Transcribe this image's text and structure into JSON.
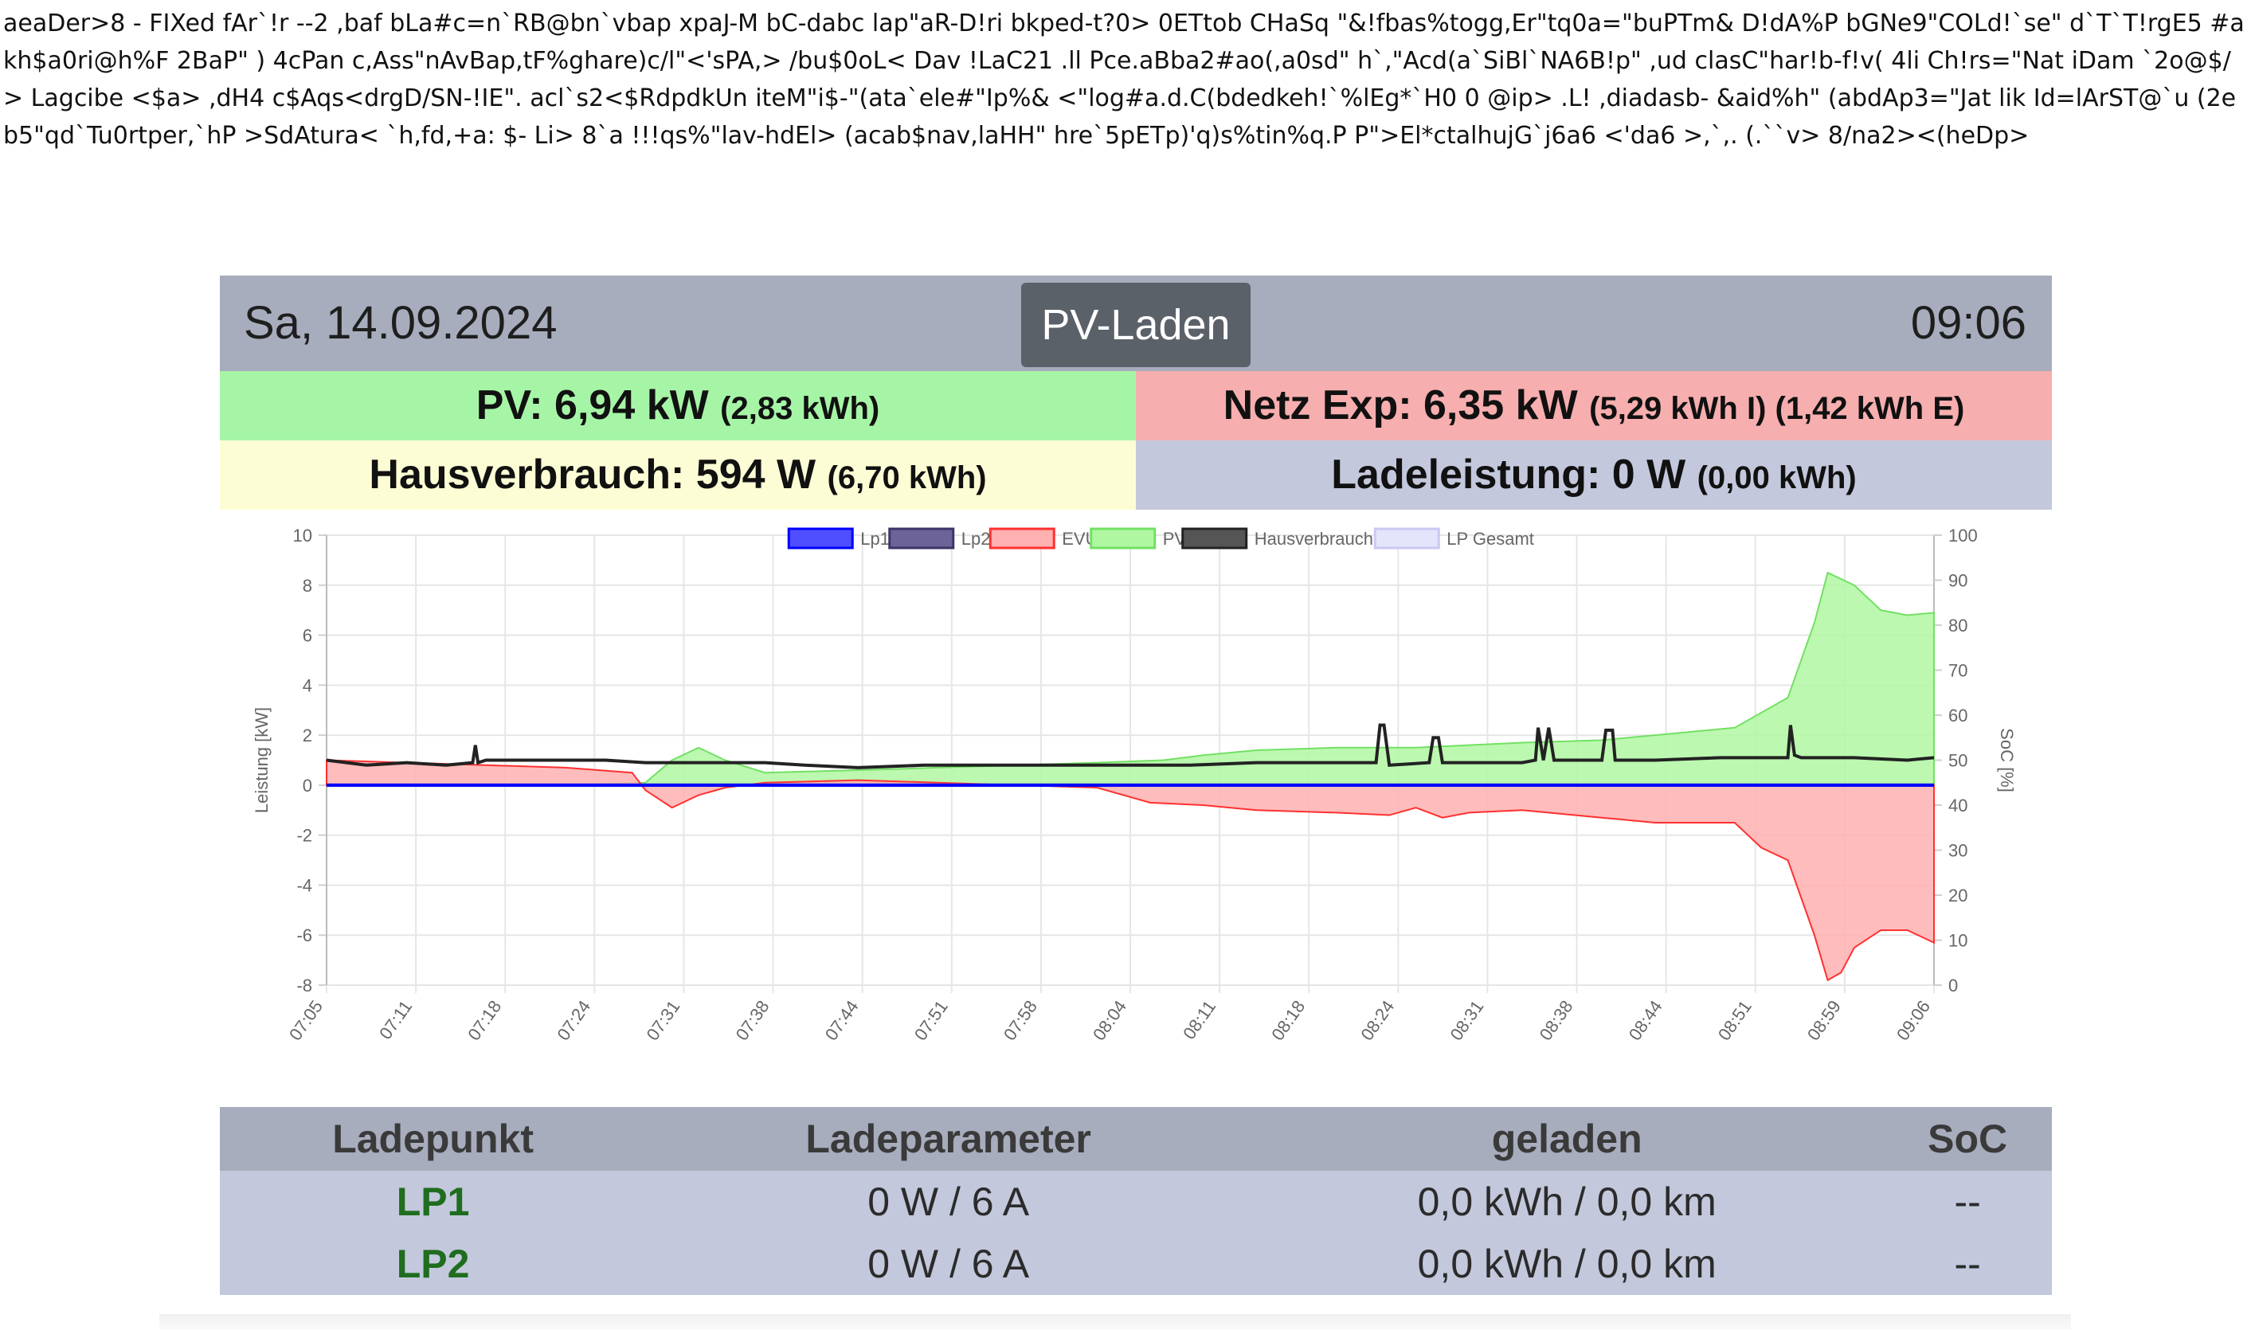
{
  "garbage_text": "aeaDer>8 - FIXed fAr`!r --2 ,baf bLa#c=n`RB@bn`vbap xpaJ-M bC-dabc lap\"aR-D!ri bkped-t?0> 0ETtob CHaSq \"&!fbas%togg,Er\"tq0a=\"buPTm& D!dA%P bGNe9\"COLd!`se\" d`T`T!rgE5 #akh$a0ri@h%F 2BaP\" ) 4cPan c,Ass\"nAvBap,tF%ghare)c/l\"<'sPA,> /bu$0oL< Dav !LaC21 .ll Pce.aBba2#ao(,a0sd\" h`,\"Acd(a`SiBl`NA6B!p\"  ,ud clasC\"har!b-f!v( 4li Ch!rs=\"Nat iDam `2o@$/>    Lagcibe  <$a> ,dH4 c$Aqs<drgD/SN-!IE\". acl`s2<$RdpdkUn iteM\"i$-\"(ata`ele#\"Ip%& <\"log#a.d.C(bdedkeh!`%lEg*`H0    0 @ip> .L! ,diadasb- &aid%h\"  (abdAp3=\"Jat lik Id=lArST@`u (2eb5\"qd`Tu0rtper,`hP >SdAturа< `h,fd,+a:  $- Li> 8`a !!!qs%\"lav-hdEl> (acab$nav,laHH\" hre`5pETp)'q)s%tin%q.P P\">El*ctalhujG`j6a6 <'da6  >,`,. (.``v> 8/na2><(heDp>",
  "header": {
    "date": "Sa, 14.09.2024",
    "title": "PV-Laden",
    "time": "09:06"
  },
  "summary": {
    "pv": {
      "label": "PV: 6,94 kW",
      "sub": "(2,83 kWh)"
    },
    "netz": {
      "label": "Netz Exp: 6,35 kW",
      "sub": "(5,29 kWh I) (1,42 kWh E)"
    },
    "haus": {
      "label": "Hausverbrauch: 594 W",
      "sub": "(6,70 kWh)"
    },
    "lade": {
      "label": "Ladeleistung: 0 W",
      "sub": "(0,00 kWh)"
    }
  },
  "table": {
    "headers": [
      "Ladepunkt",
      "Ladeparameter",
      "geladen",
      "SoC"
    ],
    "rows": [
      {
        "name": "LP1",
        "param": "0 W / 6 A",
        "geladen": "0,0 kWh / 0,0 km",
        "soc": "--"
      },
      {
        "name": "LP2",
        "param": "0 W / 6 A",
        "geladen": "0,0 kWh / 0,0 km",
        "soc": "--"
      }
    ]
  },
  "chart_data": {
    "type": "line",
    "ylabel": "Leistung [kW]",
    "ylabel_right": "SoC [%]",
    "ylim": [
      -8,
      10
    ],
    "y2lim": [
      0,
      100
    ],
    "yticks": [
      "10",
      "8",
      "6",
      "4",
      "2",
      "0",
      "-2",
      "-4",
      "-6",
      "-8"
    ],
    "y2ticks": [
      "100",
      "90",
      "80",
      "70",
      "60",
      "50",
      "40",
      "30",
      "20",
      "10",
      "0"
    ],
    "xticks": [
      "07:05",
      "07:11",
      "07:18",
      "07:24",
      "07:31",
      "07:38",
      "07:44",
      "07:51",
      "07:58",
      "08:04",
      "08:11",
      "08:18",
      "08:24",
      "08:31",
      "08:38",
      "08:44",
      "08:51",
      "08:59",
      "09:06"
    ],
    "xlim": [
      0,
      121
    ],
    "legend_position": "top",
    "legend": [
      {
        "name": "Lp1",
        "fill": "#4f4fff",
        "stroke": "#0000ff"
      },
      {
        "name": "Lp2",
        "fill": "#6c6399",
        "stroke": "#3d3567"
      },
      {
        "name": "EVU",
        "fill": "#ffb0b0",
        "stroke": "#ff3030"
      },
      {
        "name": "PV",
        "fill": "#b0f7a2",
        "stroke": "#73e063"
      },
      {
        "name": "Hausverbrauch",
        "fill": "#555555",
        "stroke": "#222222"
      },
      {
        "name": "LP Gesamt",
        "fill": "#e4e4fb",
        "stroke": "#c9c9f3"
      }
    ],
    "series": [
      {
        "name": "PV",
        "x": [
          0,
          6,
          12,
          18,
          24,
          26,
          28,
          30,
          33,
          40,
          46,
          52,
          58,
          63,
          66,
          70,
          76,
          82,
          86,
          90,
          96,
          100,
          106,
          110,
          111,
          112,
          113,
          115,
          117,
          119,
          121
        ],
        "values": [
          0,
          0,
          0,
          0,
          0.1,
          1.0,
          1.5,
          1.0,
          0.5,
          0.6,
          0.7,
          0.8,
          0.9,
          1.0,
          1.2,
          1.4,
          1.5,
          1.5,
          1.6,
          1.7,
          1.8,
          2.0,
          2.3,
          3.5,
          5.0,
          6.5,
          8.5,
          8.0,
          7.0,
          6.8,
          6.9
        ]
      },
      {
        "name": "EVU",
        "x": [
          0,
          6,
          12,
          18,
          23,
          24,
          26,
          28,
          30,
          33,
          40,
          46,
          52,
          58,
          60,
          62,
          66,
          70,
          76,
          80,
          82,
          84,
          86,
          90,
          96,
          100,
          106,
          107,
          108,
          110,
          111,
          112,
          113,
          114,
          115,
          117,
          119,
          121
        ],
        "values": [
          1.0,
          0.9,
          0.8,
          0.7,
          0.5,
          -0.2,
          -0.9,
          -0.4,
          -0.1,
          0.1,
          0.2,
          0.1,
          0.0,
          -0.1,
          -0.4,
          -0.7,
          -0.8,
          -1.0,
          -1.1,
          -1.2,
          -0.9,
          -1.3,
          -1.1,
          -1.0,
          -1.3,
          -1.5,
          -1.5,
          -2.0,
          -2.5,
          -3.0,
          -4.5,
          -6.0,
          -7.8,
          -7.5,
          -6.5,
          -5.8,
          -5.8,
          -6.3
        ]
      },
      {
        "name": "Hausverbrauch",
        "x": [
          0,
          3,
          6,
          9,
          11,
          11.2,
          11.4,
          12,
          15,
          18,
          21,
          24,
          27,
          30,
          33,
          36,
          40,
          45,
          50,
          55,
          60,
          65,
          70,
          79,
          79.3,
          79.6,
          80,
          83,
          83.3,
          83.7,
          84,
          90,
          91,
          91.2,
          91.6,
          92,
          92.4,
          93,
          96,
          96.3,
          96.8,
          97,
          100,
          105,
          110,
          110.2,
          110.5,
          111,
          115,
          119,
          121
        ],
        "values": [
          1.0,
          0.8,
          0.9,
          0.8,
          0.9,
          1.6,
          0.9,
          1.0,
          1.0,
          1.0,
          1.0,
          0.9,
          0.9,
          0.9,
          0.9,
          0.8,
          0.7,
          0.8,
          0.8,
          0.8,
          0.8,
          0.8,
          0.9,
          0.9,
          2.4,
          2.4,
          0.8,
          0.9,
          1.9,
          1.9,
          0.9,
          0.9,
          1.0,
          2.3,
          1.0,
          2.3,
          1.0,
          1.0,
          1.0,
          2.2,
          2.2,
          1.0,
          1.0,
          1.1,
          1.1,
          2.4,
          1.2,
          1.1,
          1.1,
          1.0,
          1.1
        ]
      },
      {
        "name": "Lp1",
        "x": [
          0,
          121
        ],
        "values": [
          0,
          0
        ]
      },
      {
        "name": "Lp2",
        "x": [
          0,
          121
        ],
        "values": [
          0,
          0
        ]
      },
      {
        "name": "LP Gesamt",
        "x": [
          0,
          121
        ],
        "values": [
          0,
          0
        ]
      }
    ]
  }
}
